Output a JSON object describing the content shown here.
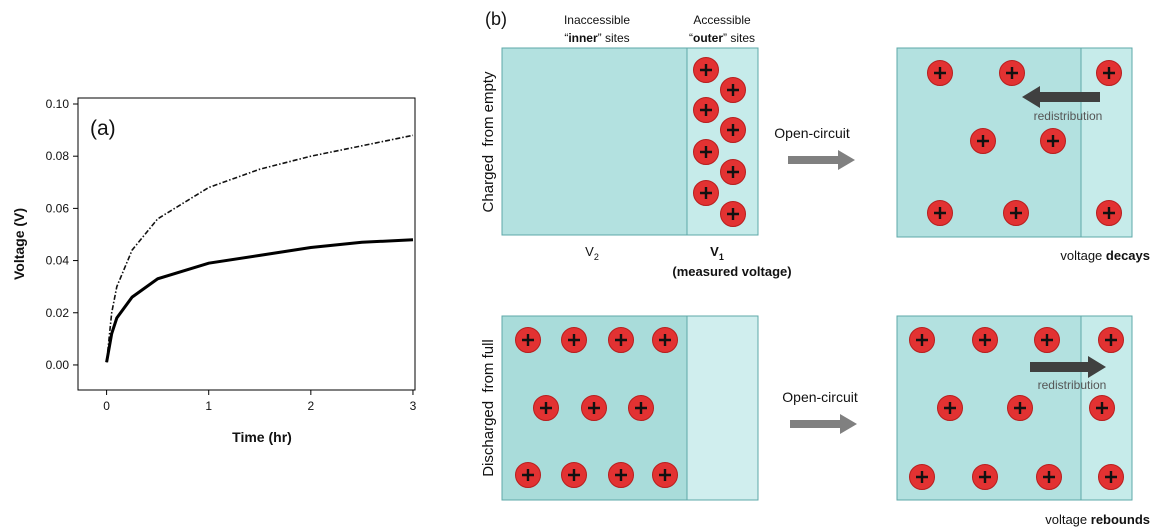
{
  "chart_data": {
    "type": "line",
    "annotation": "(a)",
    "ylabel": "Voltage (V)",
    "xlabel": "Time (hr)",
    "x": [
      0,
      0.05,
      0.1,
      0.25,
      0.5,
      1,
      1.5,
      2,
      2.5,
      3
    ],
    "series": [
      {
        "color": "#111111",
        "style": "dashdot",
        "values": [
          0.001,
          0.02,
          0.03,
          0.044,
          0.056,
          0.068,
          0.075,
          0.08,
          0.084,
          0.088
        ]
      },
      {
        "color": "#000000",
        "style": "solid",
        "values": [
          0.001,
          0.012,
          0.018,
          0.026,
          0.033,
          0.039,
          0.042,
          0.045,
          0.047,
          0.048
        ]
      }
    ],
    "xlim": [
      -0.28,
      3.02
    ],
    "ylim": [
      -0.0096,
      0.1023
    ],
    "xticks": [
      0,
      1,
      2,
      3
    ],
    "yticks": [
      {
        "value": 0,
        "label": "0.00"
      },
      {
        "value": 0.02,
        "label": "0.02"
      },
      {
        "value": 0.04,
        "label": "0.04"
      },
      {
        "value": 0.06,
        "label": "0.06"
      },
      {
        "value": 0.08,
        "label": "0.08"
      },
      {
        "value": 0.1,
        "label": "0.10"
      }
    ],
    "grid": false
  },
  "diagram": {
    "label": "(b)",
    "inner_header": {
      "line1": "Inaccessible",
      "open": "“",
      "word": "inner",
      "close": "” sites"
    },
    "outer_header": {
      "line1": "Accessible",
      "open": "“",
      "word": "outer",
      "close": "” sites"
    },
    "rows": [
      {
        "label": "Charged  from empty",
        "action": "Open-circuit",
        "arrow_label": "redistribution",
        "result_prefix": "voltage ",
        "result_word": "decays"
      },
      {
        "label": "Discharged  from full",
        "action": "Open-circuit",
        "arrow_label": "redistribution",
        "result_prefix": "voltage ",
        "result_word": "rebounds"
      }
    ],
    "v2": {
      "symbol": "V",
      "sub": "2"
    },
    "v1": {
      "symbol": "V",
      "sub": "1"
    },
    "measured": "(measured voltage)"
  }
}
